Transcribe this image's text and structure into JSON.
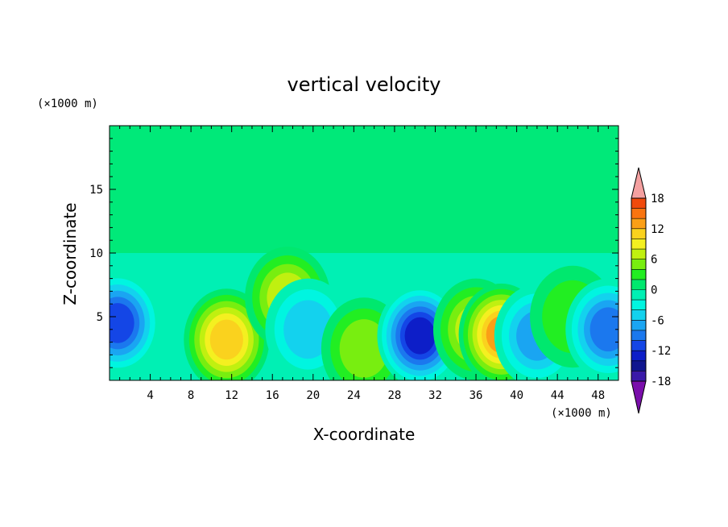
{
  "chart_data": {
    "type": "heatmap",
    "title": "vertical velocity",
    "xlabel": "X-coordinate",
    "ylabel": "Z-coordinate",
    "x_unit": "(×1000 m)",
    "y_unit": "(×1000 m)",
    "xlim": [
      0,
      50
    ],
    "ylim": [
      0,
      20
    ],
    "x_ticks": [
      4,
      8,
      12,
      16,
      20,
      24,
      28,
      32,
      36,
      40,
      44,
      48
    ],
    "y_ticks": [
      5,
      10,
      15
    ],
    "colorbar": {
      "min": -20,
      "max": 20,
      "step": 2,
      "tick_labels": [
        18,
        12,
        6,
        0,
        -6,
        -12,
        -18
      ],
      "extend": "both",
      "colors": [
        "#7a0eab",
        "#3a1aa8",
        "#10168f",
        "#0d1ec8",
        "#1446e6",
        "#1b78ee",
        "#1aa5f2",
        "#13d2ee",
        "#00f5e0",
        "#00f0b4",
        "#00e86e",
        "#22ee22",
        "#78ee10",
        "#c0f010",
        "#f4f020",
        "#fad21e",
        "#fb9f16",
        "#f97410",
        "#f14a0c",
        "#e8261a",
        "#f4a0a0"
      ]
    },
    "features": [
      {
        "x": 0.8,
        "z": 4.5,
        "value": -12
      },
      {
        "x": 11.5,
        "z": 3.2,
        "value": 12
      },
      {
        "x": 17.5,
        "z": 6.5,
        "value": 8
      },
      {
        "x": 19.5,
        "z": 4.0,
        "value": -6
      },
      {
        "x": 25.0,
        "z": 2.5,
        "value": 6
      },
      {
        "x": 30.5,
        "z": 3.5,
        "value": -14
      },
      {
        "x": 36.0,
        "z": 4.0,
        "value": 8
      },
      {
        "x": 38.5,
        "z": 3.6,
        "value": 14
      },
      {
        "x": 42.0,
        "z": 3.5,
        "value": -8
      },
      {
        "x": 45.5,
        "z": 5.0,
        "value": 4
      },
      {
        "x": 49.0,
        "z": 4.0,
        "value": -10
      }
    ]
  }
}
